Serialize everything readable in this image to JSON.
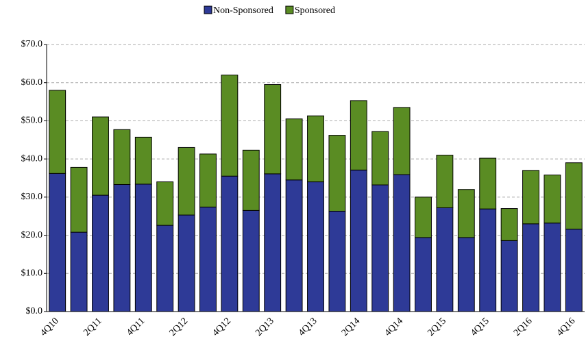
{
  "chart_data": {
    "type": "stacked_bar",
    "categories": [
      "4Q10",
      null,
      "2Q11",
      null,
      "4Q11",
      null,
      "2Q12",
      null,
      "4Q12",
      null,
      "2Q13",
      null,
      "4Q13",
      null,
      "2Q14",
      null,
      "4Q14",
      null,
      "2Q15",
      null,
      "4Q15",
      null,
      "2Q16",
      null,
      "4Q16"
    ],
    "series": [
      {
        "name": "Non-Sponsored",
        "color": "#2e3a97",
        "values": [
          36.2,
          20.8,
          30.5,
          33.3,
          33.4,
          22.6,
          25.3,
          27.4,
          35.5,
          26.5,
          36.1,
          34.5,
          34.0,
          26.3,
          37.1,
          33.2,
          35.9,
          19.4,
          27.2,
          19.4,
          26.9,
          18.6,
          23.0,
          23.2,
          21.6
        ]
      },
      {
        "name": "Sponsored",
        "color": "#5a8c23",
        "values": [
          21.8,
          17.0,
          20.5,
          14.4,
          12.3,
          11.4,
          17.7,
          13.9,
          26.5,
          15.8,
          23.4,
          16.0,
          17.3,
          19.9,
          18.2,
          14.0,
          17.6,
          10.6,
          13.8,
          12.6,
          13.3,
          8.4,
          14.0,
          12.6,
          17.4
        ]
      }
    ],
    "ylim": [
      0,
      70
    ],
    "yticks": [
      {
        "value": 0,
        "label": "$0.0"
      },
      {
        "value": 10,
        "label": "$10.0"
      },
      {
        "value": 20,
        "label": "$20.0"
      },
      {
        "value": 30,
        "label": "$30.0"
      },
      {
        "value": 40,
        "label": "$40.0"
      },
      {
        "value": 50,
        "label": "$50.0"
      },
      {
        "value": 60,
        "label": "$60.0"
      },
      {
        "value": 70,
        "label": "$70.0"
      }
    ],
    "grid": true,
    "legend": "top"
  }
}
